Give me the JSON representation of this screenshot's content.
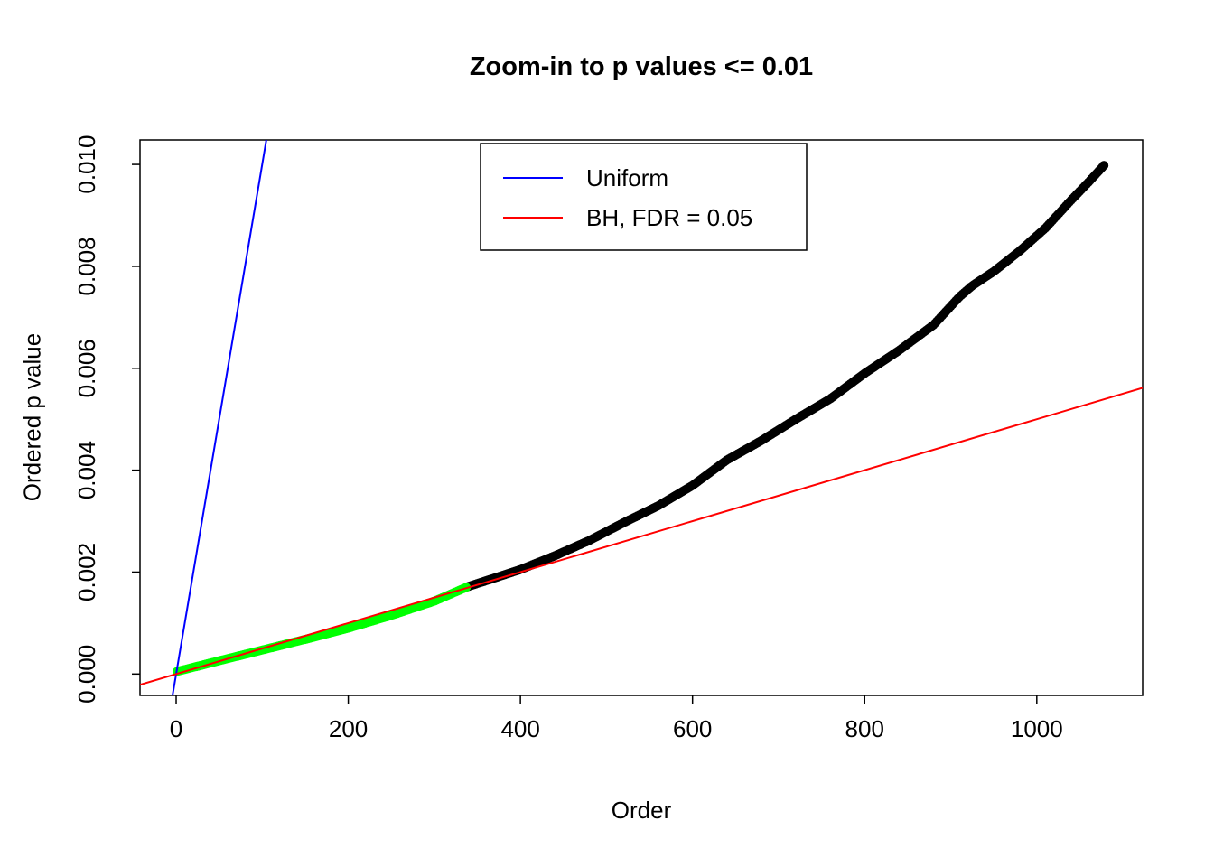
{
  "chart_data": {
    "type": "scatter",
    "title": "Zoom-in to p values <= 0.01",
    "xlabel": "Order",
    "ylabel": "Ordered p value",
    "xlim": [
      -42,
      1123
    ],
    "ylim": [
      -0.00042,
      0.01048
    ],
    "grid": false,
    "x_ticks": [
      0,
      200,
      400,
      600,
      800,
      1000
    ],
    "x_tick_labels": [
      "0",
      "200",
      "400",
      "600",
      "800",
      "1000"
    ],
    "y_ticks": [
      0,
      0.002,
      0.004,
      0.006,
      0.008,
      0.01
    ],
    "y_tick_labels": [
      "0.000",
      "0.002",
      "0.004",
      "0.006",
      "0.008",
      "0.010"
    ],
    "legend": {
      "position": "top-center",
      "entries": [
        {
          "label": "Uniform",
          "color": "#0000FF"
        },
        {
          "label": "BH, FDR = 0.05",
          "color": "#FF0000"
        }
      ]
    },
    "lines": [
      {
        "name": "uniform-line",
        "color": "#0000FF",
        "slope": 0.0001,
        "intercept": 0
      },
      {
        "name": "bh-line",
        "color": "#FF0000",
        "slope": 5e-06,
        "intercept": 0
      }
    ],
    "point_step": 2,
    "point_radius": 5,
    "series": [
      {
        "name": "bh-significant",
        "color": "#00FF00",
        "marker": "filled-circle",
        "order_range": [
          1,
          337
        ],
        "anchors": [
          [
            1,
            5e-05
          ],
          [
            50,
            0.00026
          ],
          [
            100,
            0.00047
          ],
          [
            150,
            0.00068
          ],
          [
            200,
            0.0009
          ],
          [
            250,
            0.00115
          ],
          [
            300,
            0.00143
          ],
          [
            337,
            0.0017
          ]
        ]
      },
      {
        "name": "not-significant",
        "color": "#000000",
        "marker": "filled-circle",
        "order_range": [
          338,
          1078
        ],
        "anchors": [
          [
            338,
            0.00171
          ],
          [
            360,
            0.00183
          ],
          [
            400,
            0.00205
          ],
          [
            440,
            0.00232
          ],
          [
            480,
            0.00262
          ],
          [
            520,
            0.00297
          ],
          [
            560,
            0.0033
          ],
          [
            600,
            0.0037
          ],
          [
            640,
            0.0042
          ],
          [
            680,
            0.00458
          ],
          [
            720,
            0.005
          ],
          [
            760,
            0.0054
          ],
          [
            800,
            0.0059
          ],
          [
            840,
            0.00635
          ],
          [
            880,
            0.00685
          ],
          [
            910,
            0.0074
          ],
          [
            925,
            0.00762
          ],
          [
            950,
            0.0079
          ],
          [
            980,
            0.0083
          ],
          [
            1010,
            0.00875
          ],
          [
            1040,
            0.0093
          ],
          [
            1060,
            0.00965
          ],
          [
            1078,
            0.00998
          ]
        ]
      }
    ]
  },
  "colors": {
    "background": "#FFFFFF",
    "axis": "#000000",
    "significant": "#00FF00",
    "nonsignificant": "#000000"
  }
}
